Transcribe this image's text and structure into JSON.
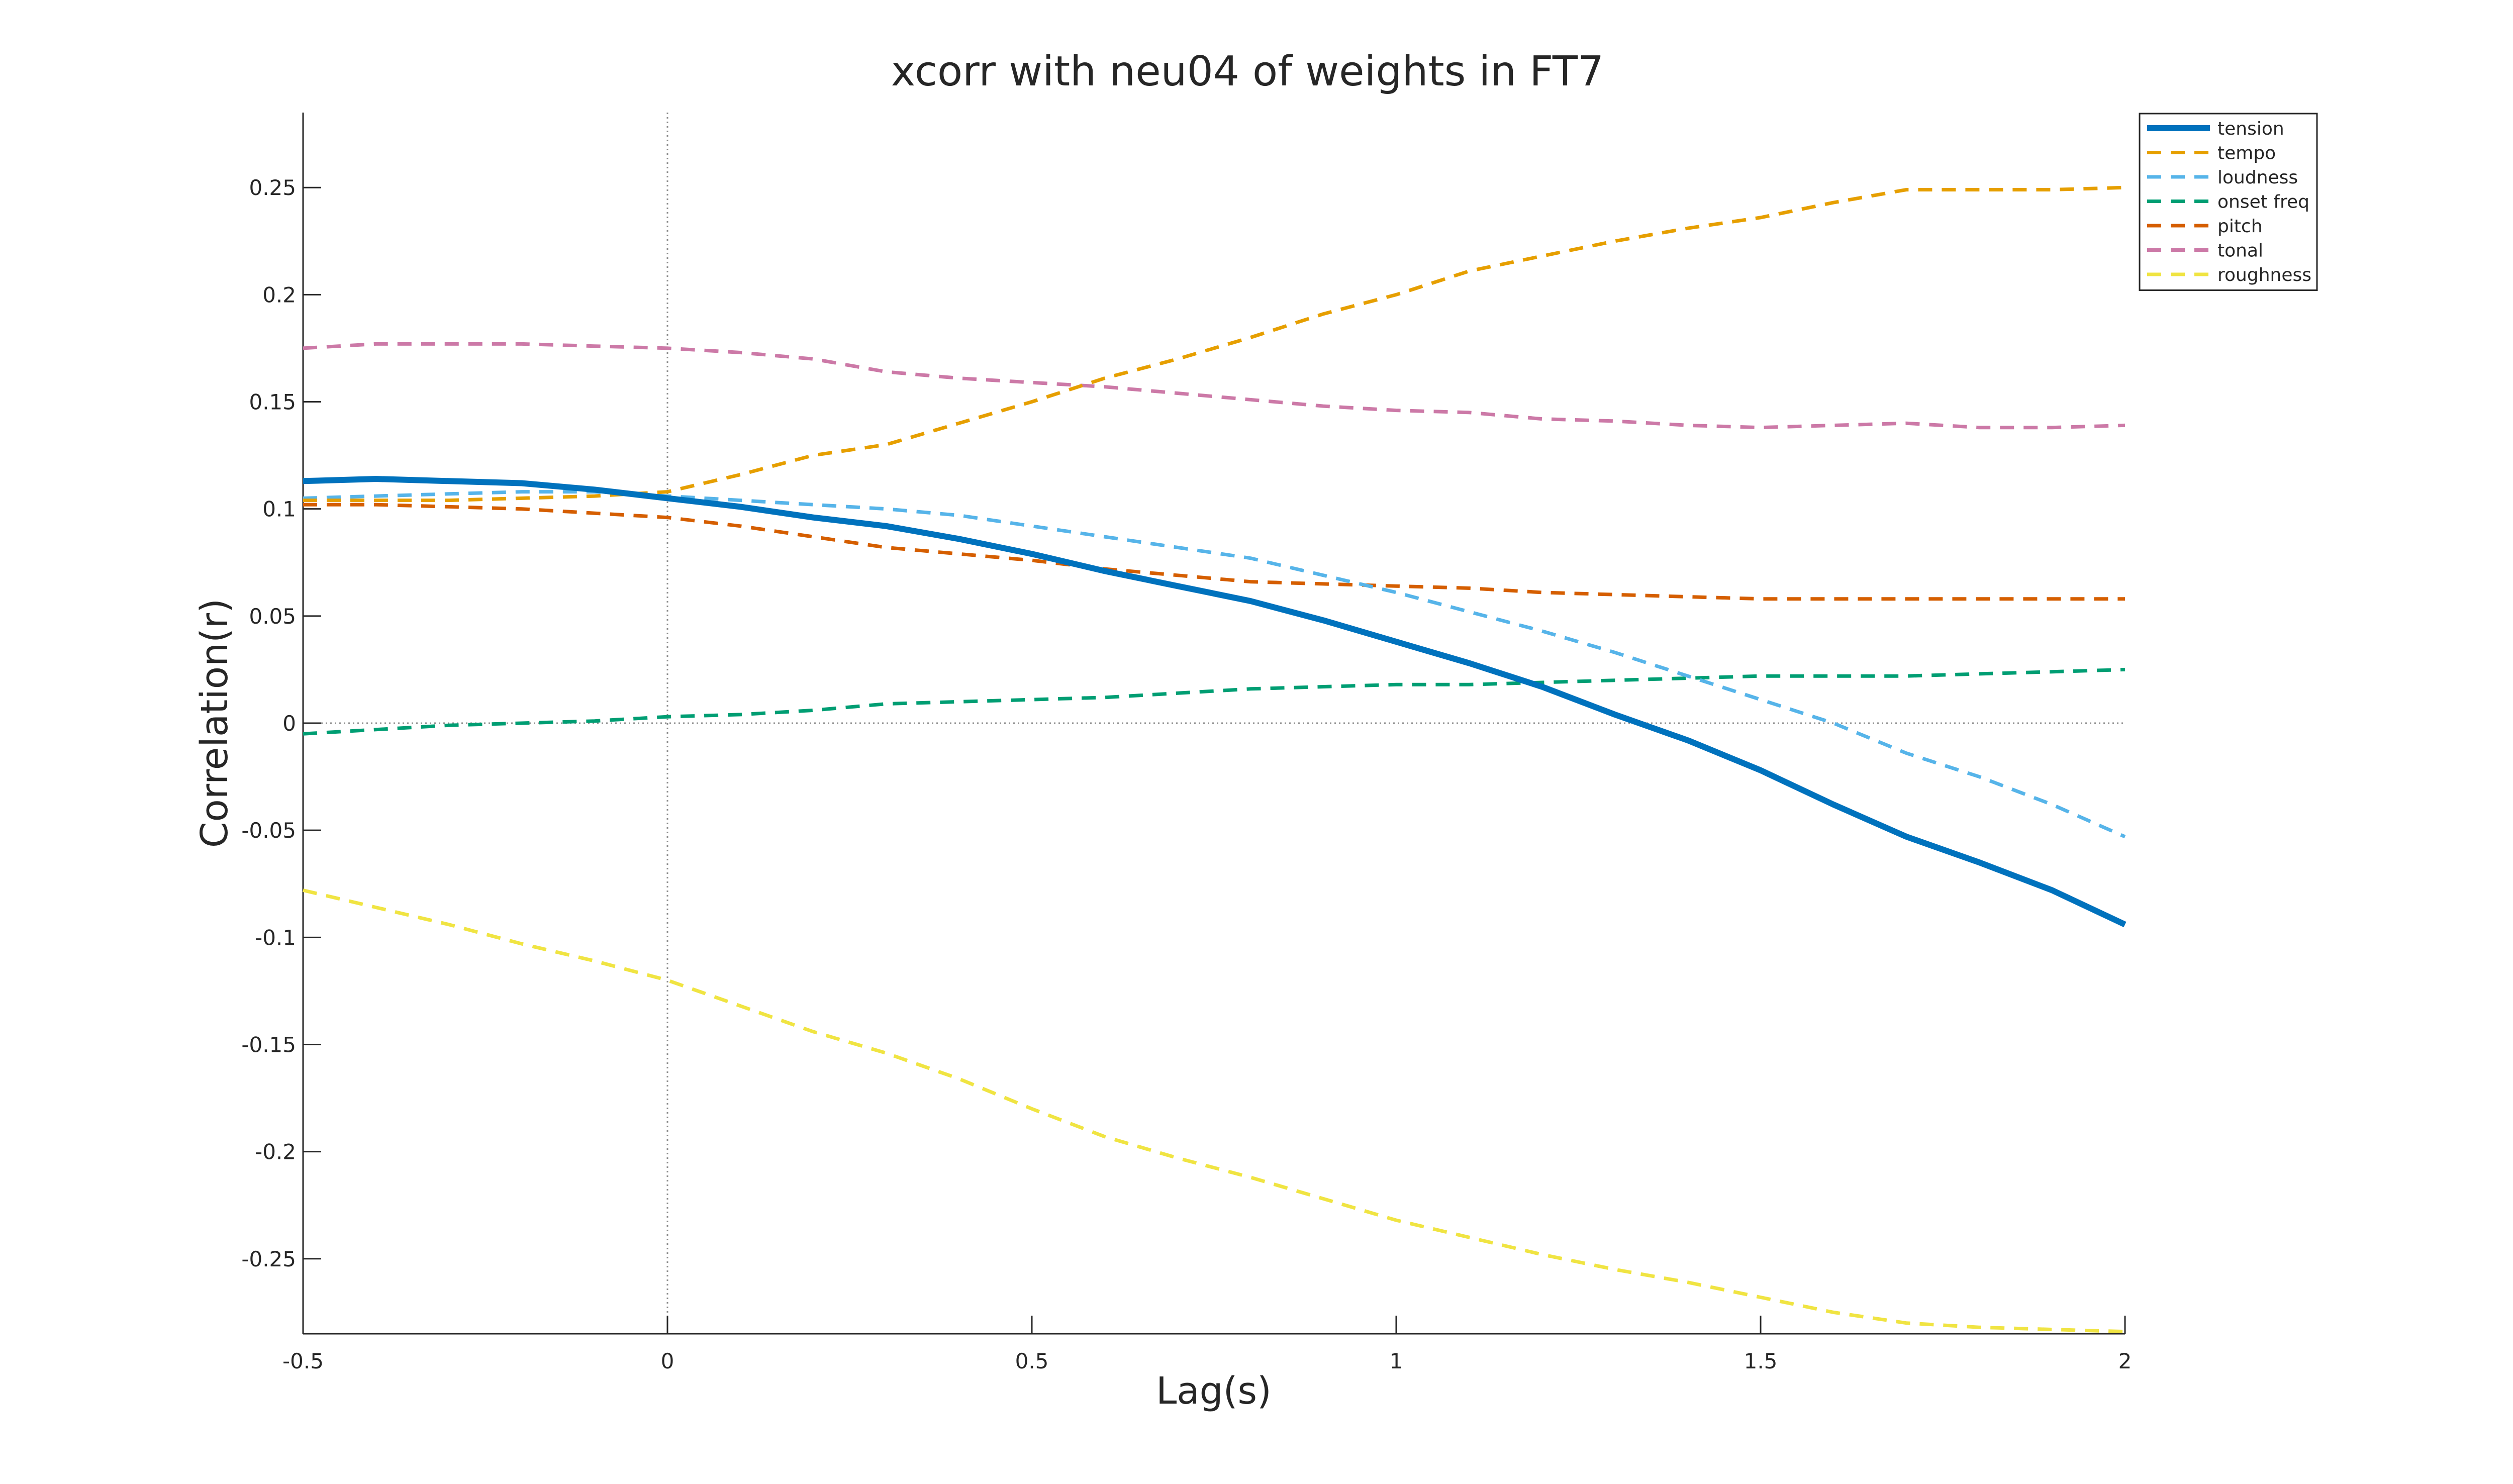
{
  "chart_data": {
    "type": "line",
    "title": "xcorr with neu04 of weights in FT7",
    "xlabel": "Lag(s)",
    "ylabel": "Correlation(r)",
    "xlim": [
      -0.5,
      2
    ],
    "ylim": [
      -0.285,
      0.285
    ],
    "xticks": [
      -0.5,
      0,
      0.5,
      1,
      1.5,
      2
    ],
    "xtick_labels": [
      "-0.5",
      "0",
      "0.5",
      "1",
      "1.5",
      "2"
    ],
    "yticks": [
      0.25,
      0.2,
      0.15,
      0.1,
      0.05,
      0,
      -0.05,
      -0.1,
      -0.15,
      -0.2,
      -0.25
    ],
    "ytick_labels": [
      "0.25",
      "0.2",
      "0.15",
      "0.1",
      "0.05",
      "0",
      "-0.05",
      "-0.1",
      "-0.15",
      "-0.2",
      "-0.25"
    ],
    "grid": false,
    "reference_lines": {
      "x": 0,
      "y": 0
    },
    "legend_position": "top-right",
    "x": [
      -0.5,
      -0.4,
      -0.3,
      -0.2,
      -0.1,
      0,
      0.1,
      0.2,
      0.3,
      0.4,
      0.5,
      0.6,
      0.7,
      0.8,
      0.9,
      1.0,
      1.1,
      1.2,
      1.3,
      1.4,
      1.5,
      1.6,
      1.7,
      1.8,
      1.9,
      2.0
    ],
    "series": [
      {
        "name": "tension",
        "color": "#0072BD",
        "style": "solid",
        "values": [
          0.113,
          0.114,
          0.113,
          0.112,
          0.109,
          0.105,
          0.101,
          0.096,
          0.092,
          0.086,
          0.079,
          0.071,
          0.064,
          0.057,
          0.048,
          0.038,
          0.028,
          0.017,
          0.004,
          -0.008,
          -0.022,
          -0.038,
          -0.053,
          -0.065,
          -0.078,
          -0.094
        ]
      },
      {
        "name": "tempo",
        "color": "#E69F00",
        "style": "dashed",
        "values": [
          0.104,
          0.104,
          0.104,
          0.105,
          0.106,
          0.108,
          0.116,
          0.125,
          0.13,
          0.14,
          0.15,
          0.161,
          0.17,
          0.18,
          0.191,
          0.2,
          0.211,
          0.218,
          0.225,
          0.231,
          0.236,
          0.243,
          0.249,
          0.249,
          0.249,
          0.25
        ]
      },
      {
        "name": "loudness",
        "color": "#56B4E9",
        "style": "dashed",
        "values": [
          0.105,
          0.106,
          0.107,
          0.108,
          0.108,
          0.106,
          0.104,
          0.102,
          0.1,
          0.097,
          0.092,
          0.087,
          0.082,
          0.077,
          0.069,
          0.061,
          0.052,
          0.043,
          0.033,
          0.022,
          0.011,
          0.0,
          -0.014,
          -0.025,
          -0.038,
          -0.053
        ]
      },
      {
        "name": "onset freq",
        "color": "#009E73",
        "style": "dashed",
        "values": [
          -0.005,
          -0.003,
          -0.001,
          0.0,
          0.001,
          0.003,
          0.004,
          0.006,
          0.009,
          0.01,
          0.011,
          0.012,
          0.014,
          0.016,
          0.017,
          0.018,
          0.018,
          0.019,
          0.02,
          0.021,
          0.022,
          0.022,
          0.022,
          0.023,
          0.024,
          0.025
        ]
      },
      {
        "name": "pitch",
        "color": "#D55E00",
        "style": "dashed",
        "values": [
          0.102,
          0.102,
          0.101,
          0.1,
          0.098,
          0.096,
          0.092,
          0.087,
          0.082,
          0.079,
          0.076,
          0.072,
          0.069,
          0.066,
          0.065,
          0.064,
          0.063,
          0.061,
          0.06,
          0.059,
          0.058,
          0.058,
          0.058,
          0.058,
          0.058,
          0.058
        ]
      },
      {
        "name": "tonal",
        "color": "#CC79A7",
        "style": "dashed",
        "values": [
          0.175,
          0.177,
          0.177,
          0.177,
          0.176,
          0.175,
          0.173,
          0.17,
          0.164,
          0.161,
          0.159,
          0.157,
          0.154,
          0.151,
          0.148,
          0.146,
          0.145,
          0.142,
          0.141,
          0.139,
          0.138,
          0.139,
          0.14,
          0.138,
          0.138,
          0.139
        ]
      },
      {
        "name": "roughness",
        "color": "#F0E442",
        "style": "dashed",
        "values": [
          -0.078,
          -0.086,
          -0.094,
          -0.103,
          -0.111,
          -0.12,
          -0.132,
          -0.144,
          -0.154,
          -0.166,
          -0.18,
          -0.193,
          -0.203,
          -0.212,
          -0.222,
          -0.232,
          -0.24,
          -0.248,
          -0.255,
          -0.261,
          -0.268,
          -0.275,
          -0.28,
          -0.282,
          -0.283,
          -0.284
        ]
      }
    ]
  }
}
